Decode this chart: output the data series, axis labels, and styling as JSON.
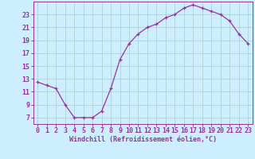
{
  "x": [
    0,
    1,
    2,
    3,
    4,
    5,
    6,
    7,
    8,
    9,
    10,
    11,
    12,
    13,
    14,
    15,
    16,
    17,
    18,
    19,
    20,
    21,
    22,
    23
  ],
  "y": [
    12.5,
    12.0,
    11.5,
    9.0,
    7.0,
    7.0,
    7.0,
    8.0,
    11.5,
    16.0,
    18.5,
    20.0,
    21.0,
    21.5,
    22.5,
    23.0,
    24.0,
    24.5,
    24.0,
    23.5,
    23.0,
    22.0,
    20.0,
    18.5
  ],
  "line_color": "#993399",
  "marker": "+",
  "background_color": "#cceeff",
  "grid_color": "#aacccc",
  "xlabel": "Windchill (Refroidissement éolien,°C)",
  "ylabel": "",
  "xlim": [
    -0.5,
    23.5
  ],
  "ylim": [
    6,
    25
  ],
  "yticks": [
    7,
    9,
    11,
    13,
    15,
    17,
    19,
    21,
    23
  ],
  "xtick_labels": [
    "0",
    "1",
    "2",
    "3",
    "4",
    "5",
    "6",
    "7",
    "8",
    "9",
    "10",
    "11",
    "12",
    "13",
    "14",
    "15",
    "16",
    "17",
    "18",
    "19",
    "20",
    "21",
    "22",
    "23"
  ],
  "font_color": "#993399",
  "axis_color": "#993399",
  "tick_color": "#993399",
  "label_fontsize": 6.0,
  "tick_fontsize": 6.0,
  "marker_size": 3,
  "linewidth": 0.9
}
